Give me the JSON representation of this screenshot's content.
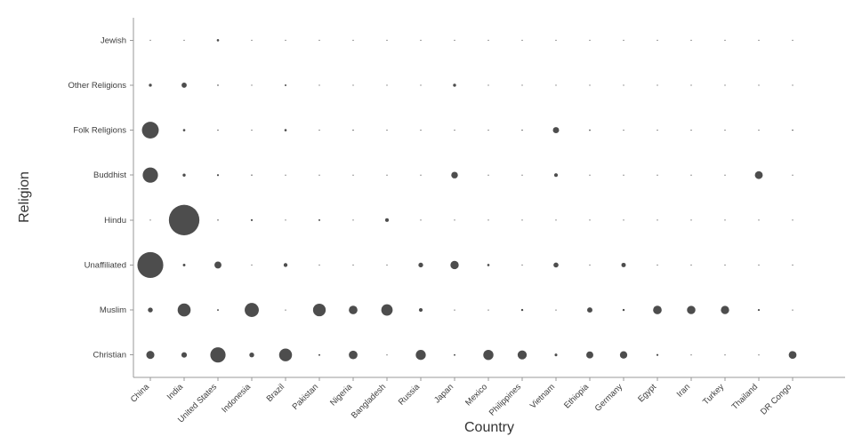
{
  "chart_data": {
    "type": "bubble",
    "title": "",
    "xlabel": "Country",
    "ylabel": "Religion",
    "legend": "none",
    "grid": false,
    "bubble_color": "#4d4d4d",
    "axis_color": "#999999",
    "label_color": "#3d3d3d",
    "values_unit": "millions of adherents",
    "x_categories": [
      "China",
      "India",
      "United States",
      "Indonesia",
      "Brazil",
      "Pakistan",
      "Nigeria",
      "Bangladesh",
      "Russia",
      "Japan",
      "Mexico",
      "Philippines",
      "Vietnam",
      "Ethiopia",
      "Germany",
      "Egypt",
      "Iran",
      "Turkey",
      "Thailand",
      "DR Congo"
    ],
    "y_categories": [
      "Jewish",
      "Other Religions",
      "Folk Religions",
      "Buddhist",
      "Hindu",
      "Unaffiliated",
      "Muslim",
      "Christian"
    ],
    "values_millions": [
      [
        0,
        0,
        5.7,
        0,
        0.1,
        0,
        0,
        0,
        0.3,
        0,
        0.1,
        0,
        0,
        0,
        0.2,
        0,
        0,
        0,
        0,
        0
      ],
      [
        9.1,
        27.6,
        1.9,
        0.4,
        3.3,
        0.1,
        0.2,
        0.4,
        0.2,
        9.7,
        0.1,
        0.2,
        0.5,
        0.1,
        0.3,
        0,
        0.1,
        0.2,
        0.1,
        0.1
      ],
      [
        294.3,
        5.8,
        1.5,
        0.7,
        5.5,
        0,
        1.5,
        0,
        0.3,
        0.4,
        1.1,
        1.5,
        39.8,
        2.3,
        0.1,
        0,
        0,
        0,
        0.1,
        1.8
      ],
      [
        244.1,
        9.3,
        3.9,
        1.7,
        0.5,
        0,
        0,
        0.9,
        0.1,
        45.8,
        0,
        0,
        14.4,
        0,
        0.3,
        0,
        0,
        0,
        64.4,
        0
      ],
      [
        0,
        973.8,
        1.8,
        4.1,
        0,
        3.3,
        0,
        13.5,
        0,
        0,
        0,
        0,
        0.1,
        0,
        0.1,
        0,
        0,
        0,
        0.1,
        0
      ],
      [
        700.7,
        7.0,
        50.6,
        0.7,
        15.4,
        0,
        0.7,
        0.1,
        23.2,
        72.1,
        5.7,
        0.1,
        26.2,
        0.4,
        20.4,
        0,
        0.2,
        0.9,
        0.2,
        1.2
      ],
      [
        24.7,
        176.2,
        2.8,
        209.1,
        0,
        167.4,
        77.3,
        134.4,
        14.3,
        0.2,
        0.1,
        4.7,
        0.2,
        28.7,
        4.8,
        76.8,
        73.6,
        71.3,
        3.9,
        1.0
      ],
      [
        68.4,
        31.1,
        243.1,
        23.7,
        173.3,
        3.3,
        78.1,
        0.8,
        104.8,
        2.9,
        107.8,
        86.4,
        7.5,
        51.5,
        56.5,
        4.1,
        0.3,
        0.3,
        0.6,
        63.2
      ]
    ]
  }
}
